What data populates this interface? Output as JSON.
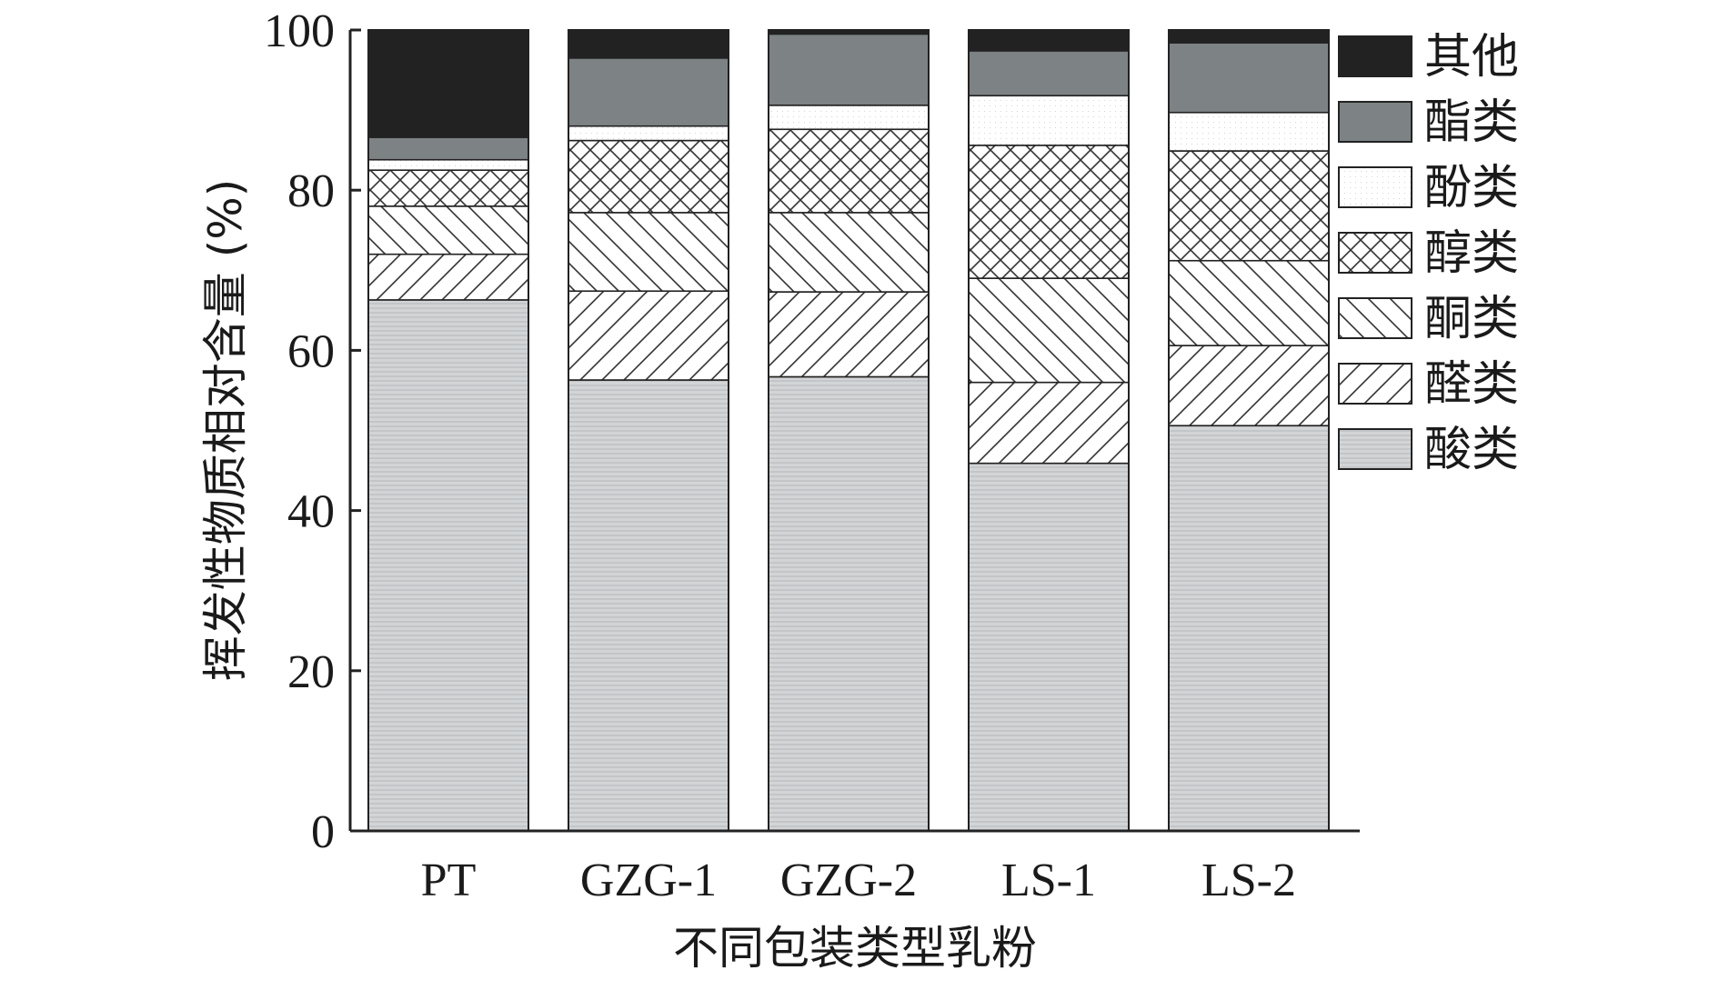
{
  "chart_data": {
    "type": "bar",
    "stacked": true,
    "title": "",
    "xlabel": "不同包装类型乳粉",
    "ylabel": "挥发性物质相对含量 (%)",
    "ylim": [
      0,
      100
    ],
    "yticks": [
      "0",
      "20",
      "40",
      "60",
      "80",
      "100"
    ],
    "categories": [
      "PT",
      "GZG-1",
      "GZG-2",
      "LS-1",
      "LS-2"
    ],
    "legend_position": "right",
    "grid": false,
    "series": [
      {
        "name": "酸类",
        "values": [
          66.3,
          56.3,
          56.7,
          45.9,
          50.6
        ],
        "fill": "#d2d4d6",
        "pattern": "hlines"
      },
      {
        "name": "醛类",
        "values": [
          5.7,
          11.1,
          10.6,
          10.1,
          10.0
        ],
        "fill": "#ffffff",
        "pattern": "diag-up"
      },
      {
        "name": "酮类",
        "values": [
          6.0,
          9.8,
          9.9,
          13.0,
          10.6
        ],
        "fill": "#ffffff",
        "pattern": "diag-down"
      },
      {
        "name": "醇类",
        "values": [
          4.5,
          9.0,
          10.4,
          16.6,
          13.7
        ],
        "fill": "#ffffff",
        "pattern": "crosshatch"
      },
      {
        "name": "酚类",
        "values": [
          1.3,
          1.8,
          3.0,
          6.2,
          4.8
        ],
        "fill": "#ffffff",
        "pattern": "dots"
      },
      {
        "name": "酯类",
        "values": [
          2.8,
          8.5,
          8.9,
          5.6,
          8.7
        ],
        "fill": "#7d8284",
        "pattern": "none"
      },
      {
        "name": "其他",
        "values": [
          13.4,
          3.5,
          0.5,
          2.6,
          1.6
        ],
        "fill": "#222222",
        "pattern": "none"
      }
    ]
  }
}
